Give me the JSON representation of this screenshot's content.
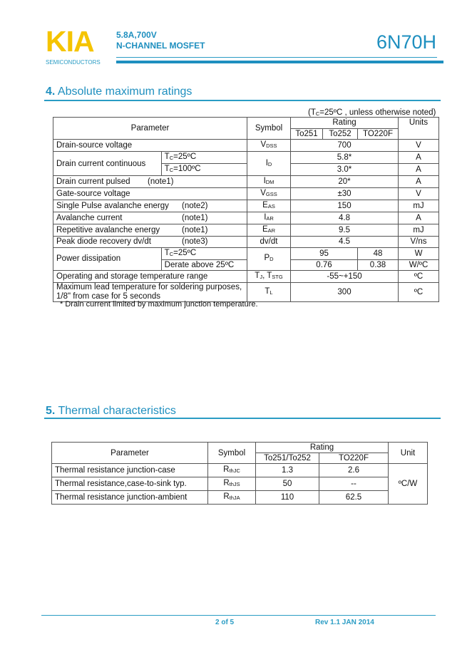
{
  "header": {
    "logo": "KIA",
    "logo_sub": "SEMICONDUCTORS",
    "subtitle1": "5.8A,700V",
    "subtitle2": "N-CHANNEL MOSFET",
    "part": "6N70H",
    "accent": "#1e8fbf",
    "logo_color": "#f5c400"
  },
  "s4": {
    "num": "4.",
    "title": "Absolute maximum ratings",
    "note": "(T",
    "note_sub": "C",
    "note_rest": "=25ºC , unless otherwise noted)",
    "headers": {
      "param": "Parameter",
      "symbol": "Symbol",
      "rating": "Rating",
      "units": "Units",
      "p1": "To251",
      "p2": "To252",
      "p3": "TO220F"
    },
    "rows": [
      {
        "param": "Drain-source voltage",
        "sym": "V",
        "sub": "DSS",
        "val": "700",
        "unit": "V"
      },
      {
        "param": "Drain current continuous",
        "cond": "T",
        "cond_sub": "C",
        "cond_rest": "=25ºC",
        "sym": "I",
        "sub": "D",
        "val": "5.8*",
        "unit": "A"
      },
      {
        "cond": "T",
        "cond_sub": "C",
        "cond_rest": "=100ºC",
        "val": "3.0*",
        "unit": "A"
      },
      {
        "param": "Drain current pulsed",
        "note": "(note1)",
        "sym": "I",
        "sub": "DM",
        "val": "20*",
        "unit": "A"
      },
      {
        "param": "Gate-source voltage",
        "sym": "V",
        "sub": "GSS",
        "val": "±30",
        "unit": "V"
      },
      {
        "param": "Single Pulse avalanche energy",
        "note": "(note2)",
        "sym": "E",
        "sub": "AS",
        "val": "150",
        "unit": "mJ"
      },
      {
        "param": "Avalanche current",
        "note": "(note1)",
        "sym": "I",
        "sub": "AR",
        "val": "4.8",
        "unit": "A"
      },
      {
        "param": "Repetitive avalanche energy",
        "note": "(note1)",
        "sym": "E",
        "sub": "AR",
        "val": "9.5",
        "unit": "mJ"
      },
      {
        "param": "Peak diode recovery dv/dt",
        "note": "(note3)",
        "sym": "dv/dt",
        "val": "4.5",
        "unit": "V/ns"
      },
      {
        "param": "Power dissipation",
        "cond": "T",
        "cond_sub": "C",
        "cond_rest": "=25ºC",
        "sym": "P",
        "sub": "D",
        "val": "95",
        "val2": "48",
        "unit": "W"
      },
      {
        "cond": "Derate above 25ºC",
        "val": "0.76",
        "val2": "0.38",
        "unit": "W/ºC"
      },
      {
        "param": "Operating and storage temperature range",
        "sym": "T",
        "sub": "J",
        "sym2": ", T",
        "sub2": "STG",
        "val": "-55~+150",
        "unit": "ºC"
      },
      {
        "param": "Maximum lead temperature for soldering purposes,",
        "param2": "1/8\" from case for 5 seconds",
        "sym": "T",
        "sub": "L",
        "val": "300",
        "unit": "ºC"
      }
    ],
    "footnote": "* Drain current limited by maximum junction temperature."
  },
  "s5": {
    "num": "5.",
    "title": "Thermal characteristics",
    "headers": {
      "param": "Parameter",
      "symbol": "Symbol",
      "rating": "Rating",
      "unit": "Unit",
      "p1": "To251/To252",
      "p2": "TO220F"
    },
    "rows": [
      {
        "param": "Thermal resistance junction-case",
        "sym": "R",
        "sub": "thJC",
        "v1": "1.3",
        "v2": "2.6"
      },
      {
        "param": "Thermal resistance,case-to-sink typ.",
        "sym": "R",
        "sub": "thJS",
        "v1": "50",
        "v2": "--"
      },
      {
        "param": "Thermal resistance junction-ambient",
        "sym": "R",
        "sub": "thJA",
        "v1": "110",
        "v2": "62.5"
      }
    ],
    "unit": "ºC/W"
  },
  "footer": {
    "page": "2 of 5",
    "rev": "Rev 1.1 JAN 2014"
  }
}
